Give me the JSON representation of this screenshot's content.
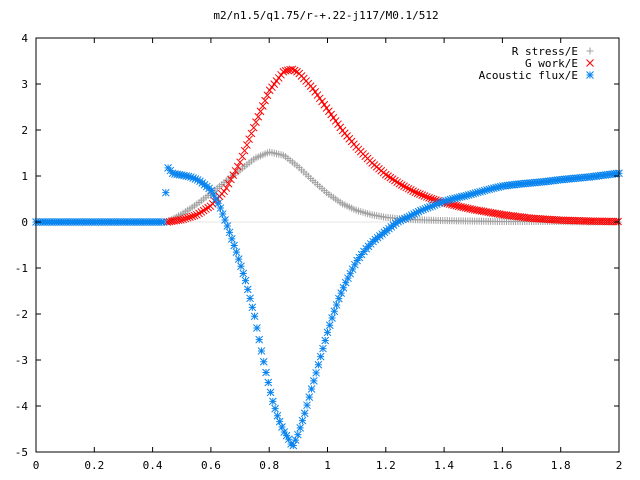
{
  "chart_data": {
    "type": "scatter",
    "title": "m2/n1.5/q1.75/r-+.22-j117/M0.1/512",
    "xlabel": "",
    "ylabel": "",
    "xlim": [
      0,
      2
    ],
    "ylim": [
      -5,
      4
    ],
    "x_ticks": [
      "0",
      "0.2",
      "0.4",
      "0.6",
      "0.8",
      "1",
      "1.2",
      "1.4",
      "1.6",
      "1.8",
      "2"
    ],
    "y_ticks": [
      "4",
      "3",
      "2",
      "1",
      "0",
      "-1",
      "-2",
      "-3",
      "-4",
      "-5"
    ],
    "grid": false,
    "legend_position": "top-right",
    "series": [
      {
        "name": "R stress/E",
        "marker": "plus",
        "color": "#a0a0a0",
        "x": [
          0.45,
          0.5,
          0.55,
          0.6,
          0.65,
          0.7,
          0.75,
          0.8,
          0.85,
          0.9,
          0.95,
          1.0,
          1.05,
          1.1,
          1.15,
          1.2,
          1.25,
          1.3,
          1.35,
          1.4,
          1.5,
          1.6,
          1.7,
          1.8,
          1.9,
          2.0
        ],
        "y": [
          0.0,
          0.17,
          0.38,
          0.62,
          0.88,
          1.13,
          1.38,
          1.52,
          1.45,
          1.2,
          0.9,
          0.62,
          0.4,
          0.25,
          0.16,
          0.1,
          0.07,
          0.05,
          0.04,
          0.03,
          0.02,
          0.01,
          0.01,
          0.01,
          0.0,
          0.0
        ]
      },
      {
        "name": "G work/E",
        "marker": "cross",
        "color": "#ff0000",
        "x": [
          0.45,
          0.5,
          0.55,
          0.6,
          0.65,
          0.7,
          0.75,
          0.8,
          0.85,
          0.88,
          0.9,
          0.95,
          1.0,
          1.05,
          1.1,
          1.15,
          1.2,
          1.25,
          1.3,
          1.35,
          1.4,
          1.45,
          1.5,
          1.6,
          1.7,
          1.8,
          1.9,
          2.0
        ],
        "y": [
          0.0,
          0.05,
          0.15,
          0.35,
          0.7,
          1.3,
          2.1,
          2.85,
          3.28,
          3.32,
          3.25,
          2.9,
          2.45,
          2.0,
          1.62,
          1.3,
          1.03,
          0.82,
          0.65,
          0.52,
          0.42,
          0.34,
          0.27,
          0.16,
          0.08,
          0.04,
          0.02,
          0.01
        ]
      },
      {
        "name": "Acoustic flux/E",
        "marker": "star",
        "color": "#0a84ef",
        "x": [
          0.0,
          0.05,
          0.1,
          0.15,
          0.2,
          0.25,
          0.3,
          0.35,
          0.4,
          0.44,
          0.45,
          0.47,
          0.5,
          0.53,
          0.56,
          0.6,
          0.63,
          0.66,
          0.69,
          0.72,
          0.75,
          0.77,
          0.79,
          0.81,
          0.83,
          0.85,
          0.87,
          0.88,
          0.9,
          0.92,
          0.94,
          0.96,
          0.98,
          1.0,
          1.02,
          1.04,
          1.06,
          1.08,
          1.1,
          1.13,
          1.16,
          1.2,
          1.24,
          1.28,
          1.32,
          1.36,
          1.4,
          1.44,
          1.48,
          1.52,
          1.56,
          1.6,
          1.65,
          1.7,
          1.75,
          1.8,
          1.85,
          1.9,
          1.95,
          2.0
        ],
        "y": [
          0.0,
          0.0,
          0.0,
          0.0,
          0.0,
          0.0,
          0.0,
          0.0,
          0.0,
          0.0,
          1.2,
          1.05,
          1.02,
          0.98,
          0.9,
          0.7,
          0.35,
          -0.15,
          -0.7,
          -1.3,
          -2.05,
          -2.7,
          -3.3,
          -3.85,
          -4.25,
          -4.55,
          -4.75,
          -4.9,
          -4.6,
          -4.2,
          -3.75,
          -3.3,
          -2.85,
          -2.4,
          -2.0,
          -1.65,
          -1.35,
          -1.1,
          -0.85,
          -0.6,
          -0.4,
          -0.2,
          0.0,
          0.12,
          0.25,
          0.35,
          0.45,
          0.52,
          0.58,
          0.65,
          0.72,
          0.78,
          0.82,
          0.85,
          0.88,
          0.92,
          0.95,
          0.98,
          1.02,
          1.06
        ]
      }
    ]
  }
}
